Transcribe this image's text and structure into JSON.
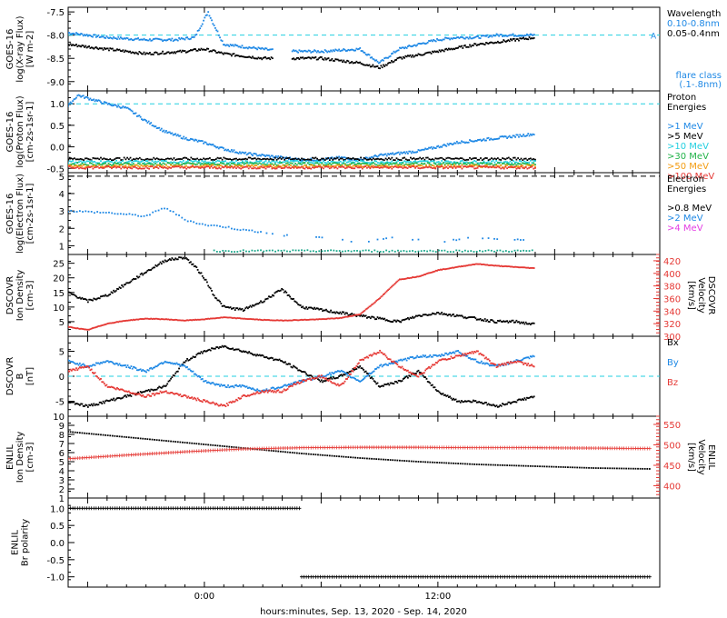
{
  "figure": {
    "xaxis_label": "hours:minutes, Sep. 13, 2020 - Sep. 14, 2020",
    "x_tick_labels": [
      "0:00",
      "12:00"
    ]
  },
  "colors": {
    "black": "#000000",
    "blue": "#1e88e5",
    "red": "#e53935",
    "cyan": "#22cfe0",
    "green": "#22b34a",
    "yellow": "#d7c400",
    "orange": "#f39c12",
    "magenta": "#e43ee4",
    "darkred": "#c0392b",
    "teal": "#17a589"
  },
  "chart_data": [
    {
      "id": "xray",
      "type": "scatter",
      "ylabel_lines": [
        "GOES-16",
        "log(X-ray Flux)",
        "[W m-2]"
      ],
      "ylim": [
        -9.2,
        -7.4
      ],
      "ytick_labels": [
        "-7.5",
        "-8.0",
        "-8.5",
        "-9.0"
      ],
      "ytick_values": [
        -7.5,
        -8.0,
        -8.5,
        -9.0
      ],
      "ref_line": {
        "value": -8.0,
        "label": "A"
      },
      "legend_title": "Wavelength",
      "legend": [
        {
          "label": "0.10-0.8nm",
          "color": "blue"
        },
        {
          "label": "0.05-0.4nm",
          "color": "black"
        }
      ],
      "flare_class_label": [
        "flare class",
        "(.1-.8nm)"
      ],
      "series": [
        {
          "name": "0.10-0.8nm",
          "color": "blue",
          "x": [
            -7,
            -5,
            -3,
            -1.5,
            -0.5,
            0.2,
            0.4,
            1,
            2,
            3,
            4,
            6,
            8,
            9,
            10,
            11,
            12,
            13,
            14,
            15,
            16,
            17
          ],
          "y": [
            -7.95,
            -8.05,
            -8.1,
            -8.1,
            -8.05,
            -7.5,
            -7.7,
            -8.2,
            -8.25,
            -8.3,
            -8.35,
            -8.35,
            -8.3,
            -8.6,
            -8.3,
            -8.2,
            -8.1,
            -8.05,
            -8.05,
            -8.0,
            -8.0,
            -8.0
          ]
        },
        {
          "name": "0.05-0.4nm",
          "color": "black",
          "x": [
            -7,
            -5,
            -3,
            -1,
            0,
            1,
            2,
            3,
            4,
            6,
            8,
            9,
            10,
            12,
            14,
            16,
            17
          ],
          "y": [
            -8.2,
            -8.3,
            -8.4,
            -8.35,
            -8.3,
            -8.4,
            -8.45,
            -8.5,
            -8.5,
            -8.5,
            -8.6,
            -8.7,
            -8.5,
            -8.35,
            -8.2,
            -8.1,
            -8.05
          ]
        }
      ]
    },
    {
      "id": "proton",
      "type": "scatter",
      "ylabel_lines": [
        "GOES-16",
        "log(Proton Flux)",
        "[cm-2s-1sr-1]"
      ],
      "ylim": [
        -0.6,
        1.3
      ],
      "ytick_labels": [
        "1.0",
        "0.5",
        "0.0",
        "-0.5"
      ],
      "ytick_values": [
        1.0,
        0.5,
        0.0,
        -0.5
      ],
      "ref_line": {
        "value": 1.0
      },
      "legend_title": [
        "Proton",
        "Energies"
      ],
      "legend": [
        {
          "label": ">1 MeV",
          "color": "blue"
        },
        {
          "label": ">5 MeV",
          "color": "black"
        },
        {
          "label": ">10 MeV",
          "color": "cyan"
        },
        {
          "label": ">30 MeV",
          "color": "green"
        },
        {
          "label": ">50 MeV",
          "color": "orange"
        },
        {
          "label": ">100 MeV",
          "color": "red"
        }
      ],
      "series": [
        {
          "name": ">1 MeV",
          "color": "blue",
          "x": [
            -7,
            -6.5,
            -5,
            -4,
            -3,
            -2,
            -1,
            0,
            1,
            2,
            3,
            4,
            5,
            6,
            7,
            8,
            9,
            10,
            11,
            12,
            13,
            14,
            15,
            16,
            17
          ],
          "y": [
            0.95,
            1.2,
            1.0,
            0.9,
            0.6,
            0.35,
            0.2,
            0.1,
            -0.05,
            -0.15,
            -0.2,
            -0.25,
            -0.3,
            -0.3,
            -0.25,
            -0.3,
            -0.2,
            -0.15,
            -0.1,
            0.0,
            0.1,
            0.15,
            0.2,
            0.25,
            0.3
          ]
        },
        {
          "name": ">5 MeV",
          "color": "black",
          "x": [
            -7,
            17
          ],
          "y": [
            -0.28,
            -0.28
          ]
        },
        {
          "name": ">10 MeV",
          "color": "cyan",
          "x": [
            -7,
            17
          ],
          "y": [
            -0.35,
            -0.35
          ]
        },
        {
          "name": ">30 MeV",
          "color": "green",
          "x": [
            -7,
            17
          ],
          "y": [
            -0.4,
            -0.4
          ]
        },
        {
          "name": ">50 MeV",
          "color": "orange",
          "x": [
            -7,
            17
          ],
          "y": [
            -0.45,
            -0.45
          ]
        },
        {
          "name": ">100 MeV",
          "color": "red",
          "x": [
            -7,
            17
          ],
          "y": [
            -0.48,
            -0.48
          ]
        }
      ]
    },
    {
      "id": "electron",
      "type": "scatter",
      "ylabel_lines": [
        "GOES-16",
        "log(Electron Flux)",
        "[cm-2s-1sr-1]"
      ],
      "ylim": [
        0.5,
        5.2
      ],
      "ytick_labels": [
        "5",
        "4",
        "3",
        "2",
        "1"
      ],
      "ytick_values": [
        5,
        4,
        3,
        2,
        1
      ],
      "ref_line": {
        "value": 5.0
      },
      "legend_title": [
        "Electron",
        "Energies"
      ],
      "legend": [
        {
          "label": ">0.8 MeV",
          "color": "black"
        },
        {
          "label": ">2 MeV",
          "color": "blue"
        },
        {
          "label": ">4 MeV",
          "color": "magenta"
        }
      ],
      "series": [
        {
          "name": ">2 MeV",
          "color": "blue",
          "x": [
            -7,
            -5,
            -3,
            -2,
            -1,
            0,
            1,
            2,
            3,
            4,
            5,
            6,
            8,
            10,
            12,
            14,
            16,
            17
          ],
          "y": [
            3.0,
            2.9,
            2.7,
            3.2,
            2.5,
            2.2,
            2.1,
            1.9,
            1.8,
            1.6,
            1.5,
            1.5,
            1.2,
            1.5,
            1.2,
            1.5,
            1.3,
            1.5
          ]
        },
        {
          "name": "flat",
          "color": "teal",
          "x": [
            0.5,
            17
          ],
          "y": [
            0.7,
            0.7
          ]
        }
      ]
    },
    {
      "id": "dscovr_density",
      "type": "line",
      "ylabel_lines": [
        "DSCOVR",
        "Ion Density",
        "[cm-3]"
      ],
      "ylim": [
        0,
        28
      ],
      "ytick_labels": [
        "25",
        "20",
        "15",
        "10",
        "5"
      ],
      "ytick_values": [
        25,
        20,
        15,
        10,
        5
      ],
      "y2label_lines": [
        "DSCOVR",
        "Velocity",
        "[km/s]"
      ],
      "y2lim": [
        300,
        430
      ],
      "y2tick_labels": [
        "420",
        "400",
        "380",
        "360",
        "340",
        "320",
        "300"
      ],
      "y2tick_values": [
        420,
        400,
        380,
        360,
        340,
        320,
        300
      ],
      "series": [
        {
          "name": "Ion Density",
          "color": "black",
          "axis": "y",
          "x": [
            -7,
            -6,
            -5,
            -4,
            -3,
            -2,
            -1,
            -0.5,
            0,
            0.5,
            1,
            2,
            3,
            4,
            5,
            6,
            7,
            8,
            9,
            10,
            11,
            12,
            13,
            14,
            15,
            16,
            17
          ],
          "y": [
            15,
            12,
            14,
            18,
            22,
            26,
            27,
            24,
            20,
            14,
            10,
            9,
            12,
            16,
            10,
            9,
            8,
            7,
            6,
            5,
            7,
            8,
            7,
            6,
            5,
            5,
            4
          ]
        },
        {
          "name": "Velocity",
          "color": "red",
          "axis": "y2",
          "x": [
            -7,
            -6,
            -5,
            -4,
            -3,
            -2,
            -1,
            0,
            1,
            2,
            3,
            4,
            5,
            6,
            7,
            8,
            9,
            10,
            11,
            12,
            13,
            14,
            15,
            16,
            17
          ],
          "y": [
            315,
            310,
            320,
            325,
            328,
            327,
            325,
            327,
            330,
            328,
            326,
            325,
            326,
            327,
            329,
            335,
            360,
            390,
            395,
            405,
            410,
            415,
            412,
            410,
            408
          ]
        }
      ]
    },
    {
      "id": "dscovr_b",
      "type": "line",
      "ylabel_lines": [
        "DSCOVR",
        "B",
        "[nT]"
      ],
      "ylim": [
        -8,
        8
      ],
      "ytick_labels": [
        "5",
        "0",
        "-5"
      ],
      "ytick_values": [
        5,
        0,
        -5
      ],
      "ref_line": {
        "value": 0
      },
      "legend": [
        {
          "label": "Bx",
          "color": "black"
        },
        {
          "label": "By",
          "color": "blue"
        },
        {
          "label": "Bz",
          "color": "red"
        }
      ],
      "series": [
        {
          "name": "Bx",
          "color": "black",
          "x": [
            -7,
            -6,
            -5,
            -4,
            -3,
            -2,
            -1,
            0,
            1,
            2,
            3,
            4,
            5,
            6,
            7,
            8,
            9,
            10,
            11,
            12,
            13,
            14,
            15,
            16,
            17
          ],
          "y": [
            -5,
            -6,
            -5,
            -4,
            -3,
            -2,
            3,
            5,
            6,
            5,
            4,
            3,
            1,
            -1,
            0,
            2,
            -2,
            -1,
            1,
            -3,
            -5,
            -5,
            -6,
            -5,
            -4
          ]
        },
        {
          "name": "By",
          "color": "blue",
          "x": [
            -7,
            -6,
            -5,
            -4,
            -3,
            -2,
            -1,
            0,
            1,
            2,
            3,
            4,
            5,
            6,
            7,
            8,
            9,
            10,
            11,
            12,
            13,
            14,
            15,
            16,
            17
          ],
          "y": [
            3,
            2,
            3,
            2,
            1,
            3,
            2,
            -1,
            -2,
            -2,
            -3,
            -2,
            -1,
            0,
            1,
            -1,
            2,
            3,
            4,
            4,
            5,
            3,
            2,
            3,
            4
          ]
        },
        {
          "name": "Bz",
          "color": "red",
          "x": [
            -7,
            -6,
            -5,
            -4,
            -3,
            -2,
            -1,
            0,
            1,
            2,
            3,
            4,
            5,
            6,
            7,
            8,
            9,
            10,
            11,
            12,
            13,
            14,
            15,
            16,
            17
          ],
          "y": [
            1,
            2,
            -2,
            -3,
            -4,
            -3,
            -4,
            -5,
            -6,
            -4,
            -3,
            -3,
            -1,
            0,
            -2,
            3,
            5,
            2,
            0,
            3,
            4,
            5,
            2,
            3,
            2
          ]
        }
      ]
    },
    {
      "id": "enlil_density",
      "type": "line",
      "ylabel_lines": [
        "ENLIL",
        "Ion Density",
        "[cm-3]"
      ],
      "ylim": [
        1,
        10
      ],
      "ytick_labels": [
        "10",
        "9",
        "8",
        "7",
        "6",
        "5",
        "4",
        "3",
        "2",
        "1"
      ],
      "ytick_values": [
        10,
        9,
        8,
        7,
        6,
        5,
        4,
        3,
        2,
        1
      ],
      "y2label_lines": [
        "ENLIL",
        "Velocity",
        "[km/s]"
      ],
      "y2lim": [
        370,
        570
      ],
      "y2tick_labels": [
        "550",
        "500",
        "450",
        "400"
      ],
      "y2tick_values": [
        550,
        500,
        450,
        400
      ],
      "series": [
        {
          "name": "Ion Density",
          "color": "black",
          "axis": "y",
          "x": [
            -7,
            -4,
            -1,
            2,
            5,
            8,
            11,
            14,
            17,
            20,
            23
          ],
          "y": [
            8.3,
            7.7,
            7.1,
            6.5,
            5.9,
            5.4,
            5.0,
            4.7,
            4.5,
            4.3,
            4.2
          ]
        },
        {
          "name": "Velocity",
          "color": "red",
          "axis": "y2",
          "x": [
            -7,
            -4,
            -1,
            2,
            5,
            8,
            11,
            14,
            17,
            20,
            23
          ],
          "y": [
            466,
            475,
            483,
            490,
            493,
            494,
            494,
            493,
            493,
            492,
            491
          ]
        }
      ]
    },
    {
      "id": "enlil_polarity",
      "type": "scatter",
      "ylabel_lines": [
        "ENLIL",
        "Br polarity"
      ],
      "ylim": [
        -1.3,
        1.3
      ],
      "ytick_labels": [
        "1.0",
        "0.5",
        "0.0",
        "-0.5",
        "-1.0"
      ],
      "ytick_values": [
        1.0,
        0.5,
        0.0,
        -0.5,
        -1.0
      ],
      "series": [
        {
          "name": "Br polarity",
          "color": "black",
          "x": [
            -7,
            5,
            5,
            23
          ],
          "y": [
            1,
            1,
            -1,
            -1
          ]
        }
      ]
    }
  ]
}
